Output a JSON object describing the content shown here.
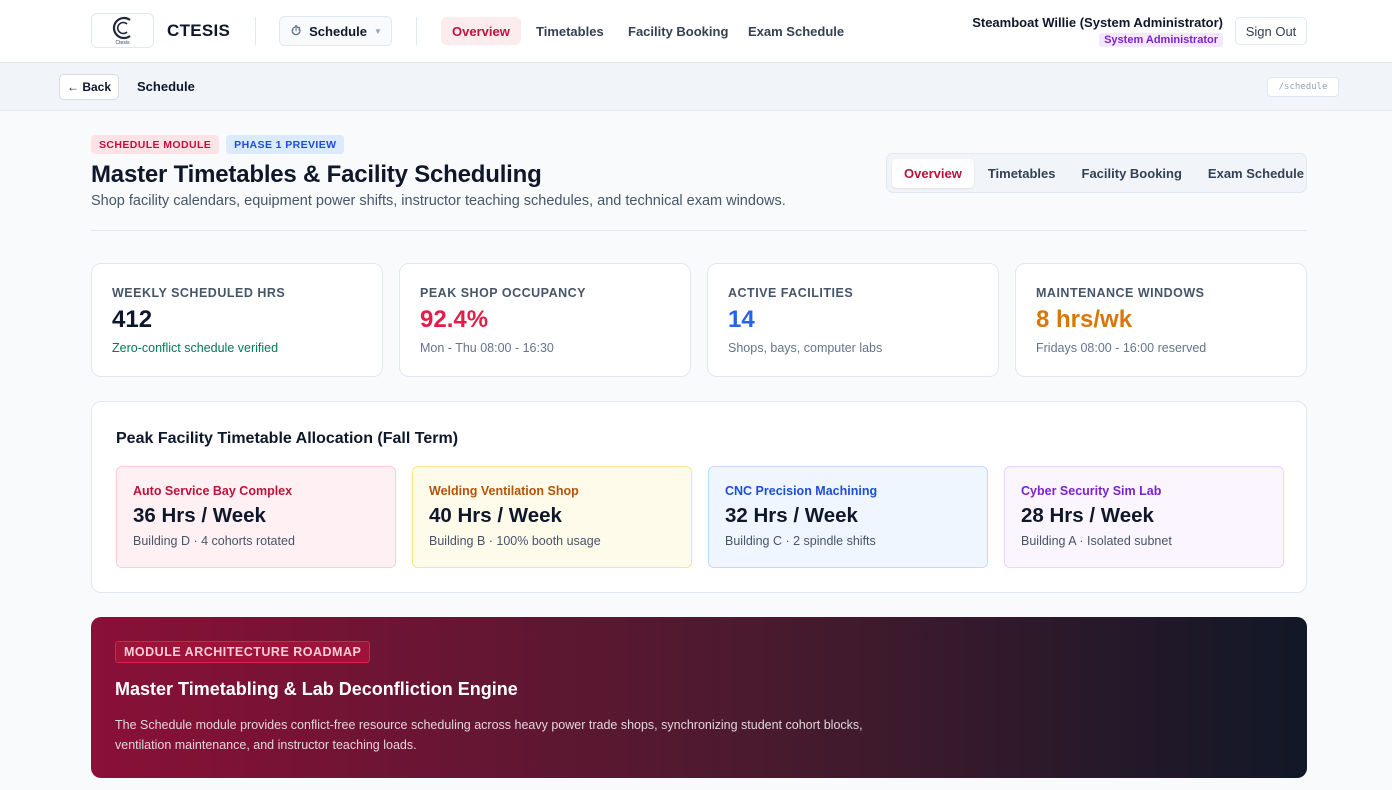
{
  "header": {
    "brand": "CTESIS",
    "logo_subtext": "Ctesis",
    "module_selector": {
      "icon": "stopwatch-icon",
      "label": "Schedule"
    },
    "nav": [
      {
        "label": "Overview",
        "active": true
      },
      {
        "label": "Timetables",
        "active": false
      },
      {
        "label": "Facility Booking",
        "active": false
      },
      {
        "label": "Exam Schedule",
        "active": false
      }
    ],
    "user": {
      "name": "Steamboat Willie (System Administrator)",
      "role": "System Administrator"
    },
    "sign_out": "Sign Out"
  },
  "breadcrumb": {
    "back": "← Back",
    "title": "Schedule",
    "path": "/schedule"
  },
  "page": {
    "badges": [
      "SCHEDULE MODULE",
      "PHASE 1 PREVIEW"
    ],
    "title": "Master Timetables & Facility Scheduling",
    "subtitle": "Shop facility calendars, equipment power shifts, instructor teaching schedules, and technical exam windows.",
    "tabs": [
      {
        "label": "Overview",
        "active": true
      },
      {
        "label": "Timetables",
        "active": false
      },
      {
        "label": "Facility Booking",
        "active": false
      },
      {
        "label": "Exam Schedule",
        "active": false
      }
    ]
  },
  "stats": [
    {
      "label": "WEEKLY SCHEDULED HRS",
      "value": "412",
      "note": "Zero-conflict schedule verified",
      "value_color": "#0f172a",
      "note_color": "#047857"
    },
    {
      "label": "PEAK SHOP OCCUPANCY",
      "value": "92.4%",
      "note": "Mon - Thu 08:00 - 16:30",
      "value_color": "#e11d48",
      "note_color": "#64748b"
    },
    {
      "label": "ACTIVE FACILITIES",
      "value": "14",
      "note": "Shops, bays, computer labs",
      "value_color": "#2563eb",
      "note_color": "#64748b"
    },
    {
      "label": "MAINTENANCE WINDOWS",
      "value": "8 hrs/wk",
      "note": "Fridays 08:00 - 16:00 reserved",
      "value_color": "#d97706",
      "note_color": "#64748b"
    }
  ],
  "allocation": {
    "title": "Peak Facility Timetable Allocation (Fall Term)",
    "facilities": [
      {
        "name": "Auto Service Bay Complex",
        "hours": "36 Hrs / Week",
        "meta": "Building D · 4 cohorts rotated",
        "name_color": "#be123c",
        "bg": "#fff1f3",
        "border": "#fecdd3"
      },
      {
        "name": "Welding Ventilation Shop",
        "hours": "40 Hrs / Week",
        "meta": "Building B · 100% booth usage",
        "name_color": "#b45309",
        "bg": "#fffbeb",
        "border": "#fde68a"
      },
      {
        "name": "CNC Precision Machining",
        "hours": "32 Hrs / Week",
        "meta": "Building C · 2 spindle shifts",
        "name_color": "#1d4ed8",
        "bg": "#eff6ff",
        "border": "#bfdbfe"
      },
      {
        "name": "Cyber Security Sim Lab",
        "hours": "28 Hrs / Week",
        "meta": "Building A · Isolated subnet",
        "name_color": "#7e22ce",
        "bg": "#faf5ff",
        "border": "#e9d5ff"
      }
    ]
  },
  "roadmap": {
    "badge": "MODULE ARCHITECTURE ROADMAP",
    "title": "Master Timetabling & Lab Deconfliction Engine",
    "description": "The Schedule module provides conflict-free resource scheduling across heavy power trade shops, synchronizing student cohort blocks, ventilation maintenance, and instructor teaching loads."
  }
}
